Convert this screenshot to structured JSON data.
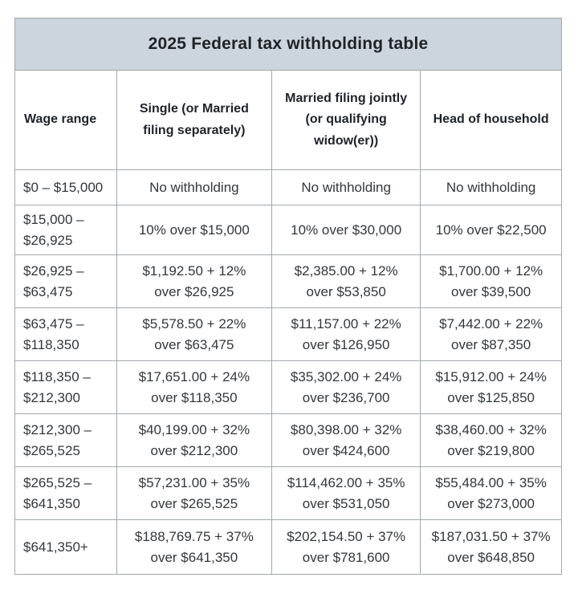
{
  "chart_data": {
    "type": "table",
    "title": "2025 Federal tax withholding table",
    "columns": [
      "Wage range",
      "Single (or Married\nfiling separately)",
      "Married filing jointly\n(or qualifying\nwidow(er))",
      "Head of household"
    ],
    "rows": [
      [
        "$0 – $15,000",
        "No withholding",
        "No withholding",
        "No withholding"
      ],
      [
        "$15,000 –\n$26,925",
        "10% over $15,000",
        "10% over $30,000",
        "10% over $22,500"
      ],
      [
        "$26,925 –\n$63,475",
        "$1,192.50 + 12%\nover $26,925",
        "$2,385.00 + 12%\nover $53,850",
        "$1,700.00 + 12%\nover $39,500"
      ],
      [
        "$63,475 –\n$118,350",
        "$5,578.50 + 22%\nover $63,475",
        "$11,157.00 + 22%\nover $126,950",
        "$7,442.00 + 22%\nover $87,350"
      ],
      [
        "$118,350 –\n$212,300",
        "$17,651.00 + 24%\nover $118,350",
        "$35,302.00 + 24%\nover $236,700",
        "$15,912.00 + 24%\nover $125,850"
      ],
      [
        "$212,300 –\n$265,525",
        "$40,199.00 + 32%\nover $212,300",
        "$80,398.00 + 32%\nover $424,600",
        "$38,460.00 + 32%\nover $219,800"
      ],
      [
        "$265,525 –\n$641,350",
        "$57,231.00 + 35%\nover $265,525",
        "$114,462.00 + 35%\nover $531,050",
        "$55,484.00 + 35%\nover $273,000"
      ],
      [
        "$641,350+",
        "$188,769.75 + 37%\nover $641,350",
        "$202,154.50 + 37%\nover $781,600",
        "$187,031.50 + 37%\nover $648,850"
      ]
    ],
    "layout_hints": {
      "title_position": "top-band",
      "grid": "on",
      "first_column_align": "left",
      "other_columns_align": "center"
    }
  },
  "colors": {
    "title_background": "#ccd5dd",
    "cell_background": "#ffffff",
    "border": "#a3a9ae",
    "title_text": "#1f2328",
    "cell_text": "#33373b"
  }
}
